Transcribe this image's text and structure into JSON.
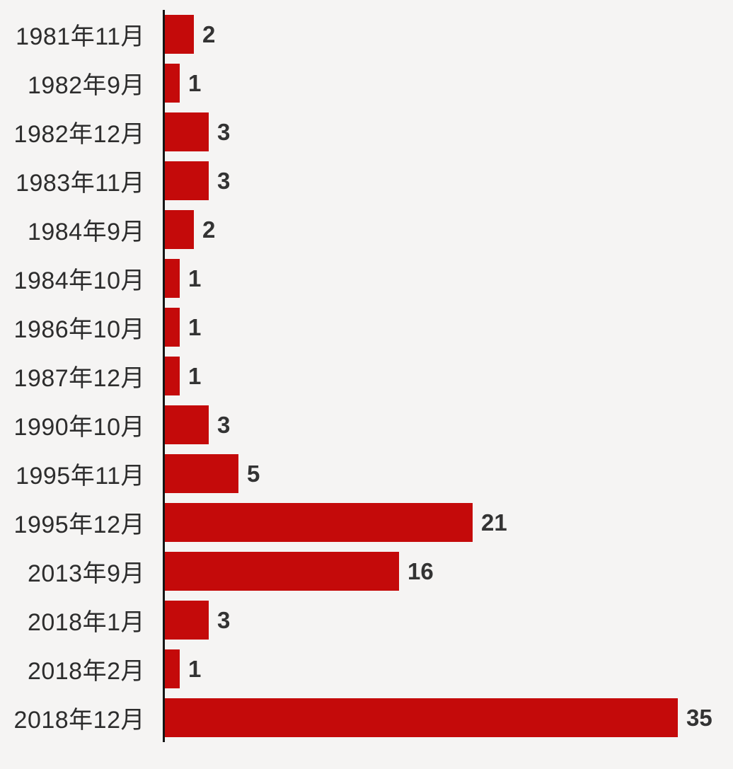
{
  "chart_data": {
    "type": "bar",
    "orientation": "horizontal",
    "title": "",
    "xlabel": "",
    "ylabel": "",
    "categories": [
      "1981年11月",
      "1982年9月",
      "1982年12月",
      "1983年11月",
      "1984年9月",
      "1984年10月",
      "1986年10月",
      "1987年12月",
      "1990年10月",
      "1995年11月",
      "1995年12月",
      "2013年9月",
      "2018年1月",
      "2018年2月",
      "2018年12月"
    ],
    "values": [
      2,
      1,
      3,
      3,
      2,
      1,
      1,
      1,
      3,
      5,
      21,
      16,
      3,
      1,
      35
    ],
    "xlim": [
      0,
      38
    ],
    "grid": false,
    "legend": false,
    "value_labels_position": "right-of-bar",
    "colors": {
      "bar": "#c40a0a",
      "background": "#f5f4f3",
      "axis": "#151515",
      "category_text": "#2d2d2d",
      "value_text": "#333333"
    }
  }
}
